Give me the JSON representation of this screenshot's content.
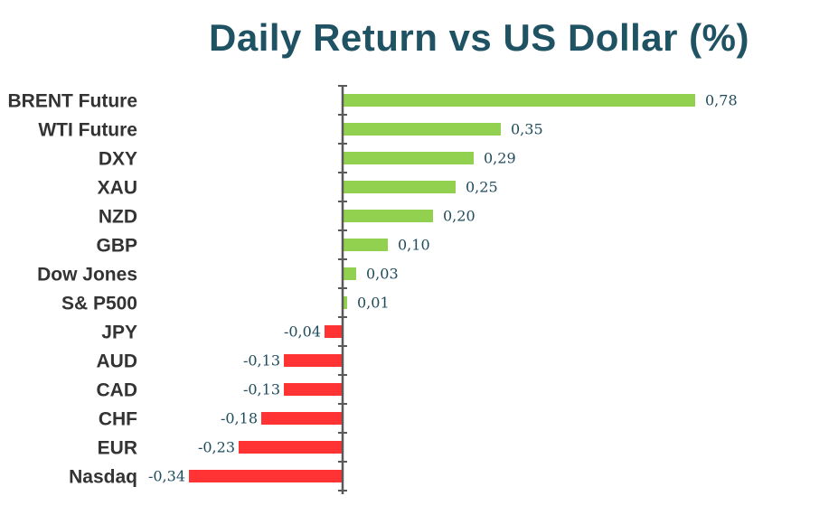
{
  "chart_data": {
    "type": "bar",
    "orientation": "horizontal",
    "title": "Daily Return vs US Dollar (%)",
    "categories": [
      "BRENT Future",
      "WTI Future",
      "DXY",
      "XAU",
      "NZD",
      "GBP",
      "Dow Jones",
      "S& P500",
      "JPY",
      "AUD",
      "CAD",
      "CHF",
      "EUR",
      "Nasdaq"
    ],
    "values": [
      0.78,
      0.35,
      0.29,
      0.25,
      0.2,
      0.1,
      0.03,
      0.01,
      -0.04,
      -0.13,
      -0.13,
      -0.18,
      -0.23,
      -0.34
    ],
    "value_labels": [
      "0,78",
      "0,35",
      "0,29",
      "0,25",
      "0,20",
      "0,10",
      "0,03",
      "0,01",
      "-0,04",
      "-0,13",
      "-0,13",
      "-0,18",
      "-0,23",
      "-0,34"
    ],
    "xlim": [
      -0.34,
      0.78
    ],
    "grid": false,
    "colors": {
      "positive": "#92d050",
      "negative": "#ff3333",
      "axis": "#595959",
      "value_text": "#1f4b5c",
      "title": "#1f5263"
    }
  }
}
